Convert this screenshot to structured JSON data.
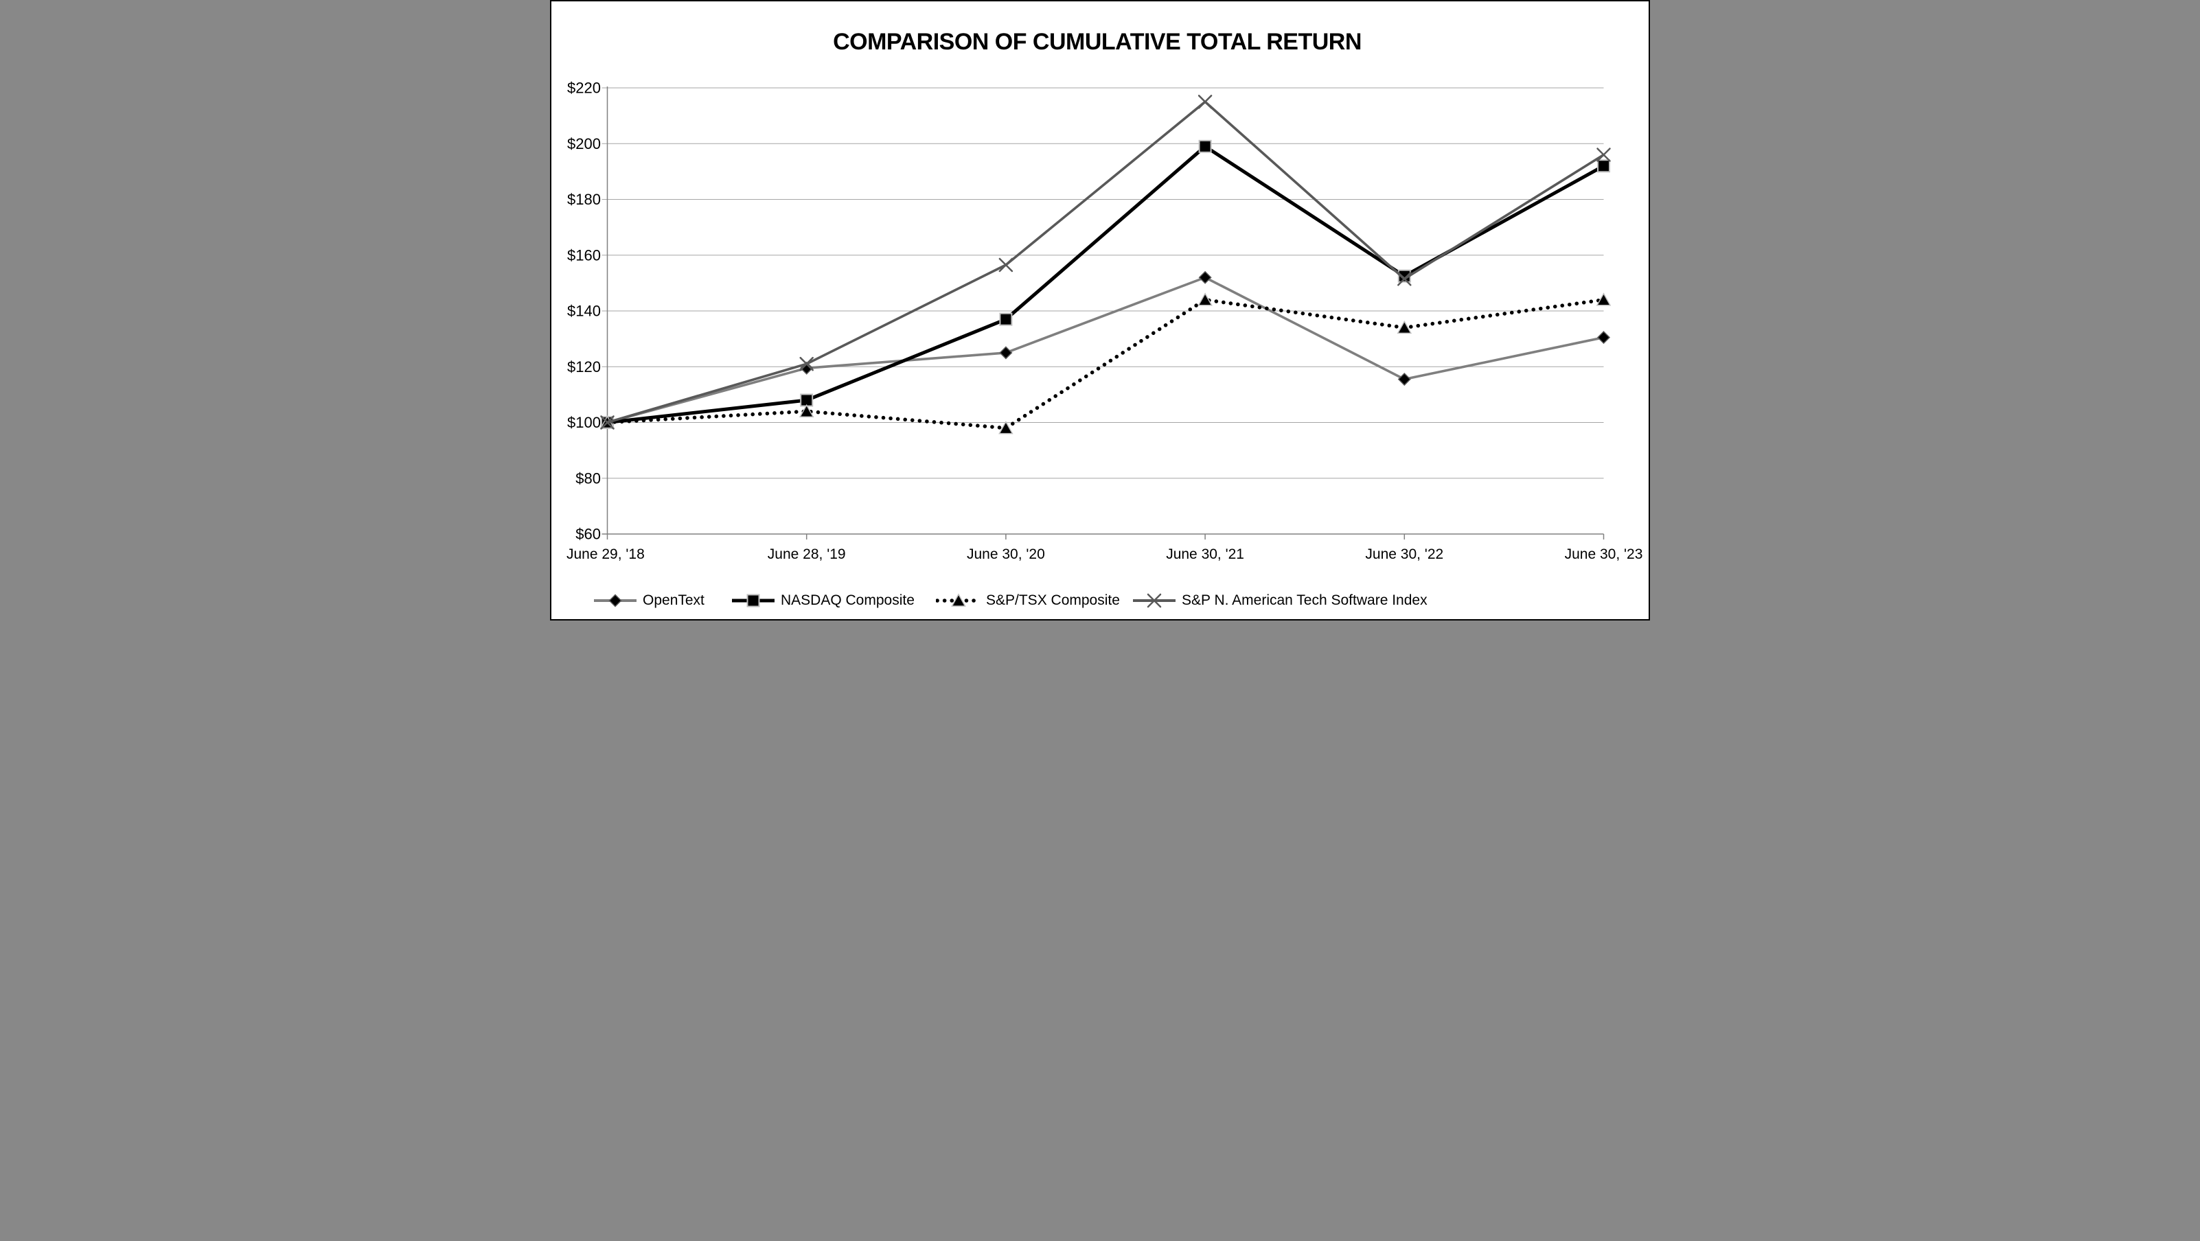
{
  "chart_data": {
    "type": "line",
    "title": "COMPARISON OF CUMULATIVE TOTAL RETURN",
    "xlabel": "",
    "ylabel": "",
    "ylim": [
      60,
      220
    ],
    "y_step": 20,
    "y_tick_labels": [
      "$220",
      "$200",
      "$180",
      "$160",
      "$140",
      "$120",
      "$100",
      "$80",
      "$60"
    ],
    "grid": true,
    "legend_position": "bottom",
    "categories": [
      "June 29, '18",
      "June 28, '19",
      "June 30, '20",
      "June 30, '21",
      "June 30, '22",
      "June 30, '23"
    ],
    "series": [
      {
        "name": "OpenText",
        "marker": "diamond",
        "line_style": "solid",
        "line_color": "#7f7f7f",
        "marker_color": "#000000",
        "values": [
          100,
          119.5,
          125,
          152,
          115.5,
          130.5
        ]
      },
      {
        "name": "NASDAQ Composite",
        "marker": "square",
        "line_style": "solid",
        "line_color": "#000000",
        "marker_color": "#000000",
        "values": [
          100,
          108,
          137,
          199,
          152.5,
          192
        ]
      },
      {
        "name": "S&P/TSX Composite",
        "marker": "triangle",
        "line_style": "dotted",
        "line_color": "#000000",
        "marker_color": "#000000",
        "values": [
          100,
          104,
          98,
          144,
          134,
          144
        ]
      },
      {
        "name": "S&P N. American Tech Software Index",
        "marker": "x",
        "line_style": "solid",
        "line_color": "#595959",
        "marker_color": "#595959",
        "values": [
          100,
          121,
          156.5,
          215,
          151.5,
          196
        ]
      }
    ],
    "colors": {
      "background": "#ffffff",
      "frame_border": "#000000",
      "gridline": "#a6a6a6",
      "axis": "#808080",
      "marker_rim_light": "#bfbfbf",
      "marker_rim_dark": "#595959",
      "text": "#000000"
    }
  }
}
